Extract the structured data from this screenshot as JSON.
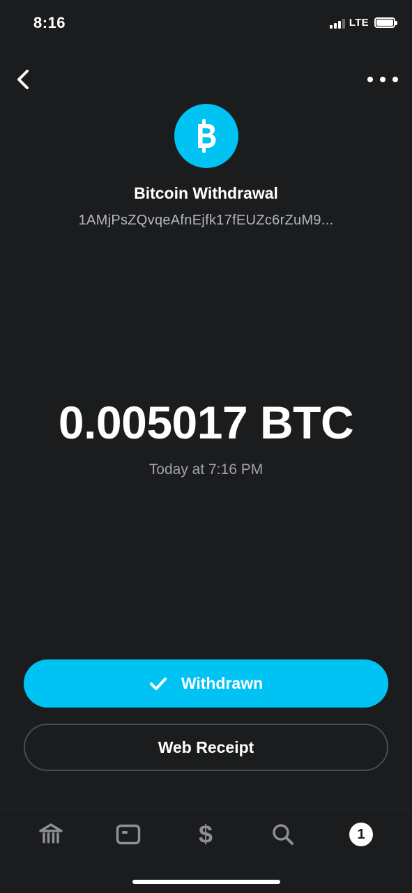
{
  "status_bar": {
    "time": "8:16",
    "network": "LTE"
  },
  "header": {
    "back_icon": "chevron-left-icon",
    "more_icon": "ellipsis-icon"
  },
  "transaction": {
    "icon": "bitcoin-icon",
    "title": "Bitcoin Withdrawal",
    "address": "1AMjPsZQvqeAfnEjfk17fEUZc6rZuM9...",
    "amount": "0.005017 BTC",
    "timestamp": "Today at 7:16 PM"
  },
  "actions": {
    "status_label": "Withdrawn",
    "status_icon": "checkmark-icon",
    "receipt_label": "Web Receipt"
  },
  "tab_bar": {
    "items": [
      {
        "name": "banking",
        "icon": "bank-icon"
      },
      {
        "name": "card",
        "icon": "card-icon"
      },
      {
        "name": "money",
        "icon": "dollar-icon"
      },
      {
        "name": "search",
        "icon": "search-icon"
      },
      {
        "name": "activity",
        "icon": "activity-badge",
        "badge": "1"
      }
    ]
  },
  "colors": {
    "background": "#1b1c1e",
    "accent": "#00c3f4",
    "text_primary": "#ffffff",
    "text_secondary": "#b6b7b9",
    "tab_icon": "#8e8f92"
  }
}
